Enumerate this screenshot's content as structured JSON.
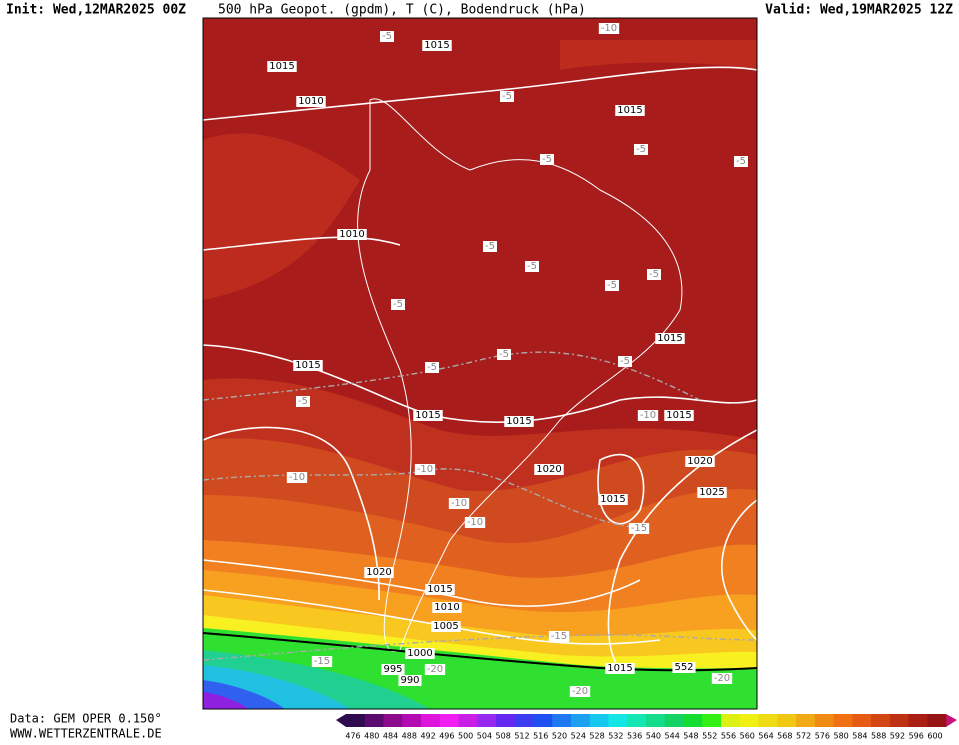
{
  "header": {
    "init": "Init: Wed,12MAR2025 00Z",
    "title": "500 hPa Geopot. (gpdm), T (C), Bodendruck (hPa)",
    "valid": "Valid: Wed,19MAR2025 12Z"
  },
  "map": {
    "pressure_labels": [
      "1015",
      "1015",
      "1010",
      "1015",
      "1010",
      "1015",
      "1015",
      "1015",
      "1015",
      "1015",
      "1020",
      "1020",
      "1015",
      "1025",
      "1020",
      "1015",
      "1010",
      "1005",
      "1000",
      "995",
      "990",
      "1015",
      "552"
    ],
    "temperature_labels": [
      "-5",
      "-10",
      "-5",
      "-5",
      "-5",
      "-5",
      "-5",
      "-5",
      "-5",
      "-5",
      "-5",
      "-5",
      "-5",
      "-5",
      "-5",
      "-10",
      "-10",
      "-10",
      "-10",
      "-10",
      "-15",
      "-15",
      "-15",
      "-20",
      "-20",
      "-20"
    ]
  },
  "colorbar": {
    "values": [
      476,
      480,
      484,
      488,
      492,
      496,
      500,
      504,
      508,
      512,
      516,
      520,
      524,
      528,
      532,
      536,
      540,
      544,
      548,
      552,
      556,
      560,
      564,
      568,
      572,
      576,
      580,
      584,
      588,
      592,
      596,
      600
    ],
    "colors": [
      "#2d0b4e",
      "#5a0a6e",
      "#8c0a8c",
      "#b40ab4",
      "#dc14dc",
      "#f01ef0",
      "#c81ee6",
      "#9628f0",
      "#6428f0",
      "#3c3cf0",
      "#1e50f0",
      "#1e78f0",
      "#1ea0f0",
      "#14c8f0",
      "#14e6e6",
      "#14e6b4",
      "#14dc8c",
      "#14d264",
      "#14dc32",
      "#32f014",
      "#dcf014",
      "#f0f014",
      "#f0dc14",
      "#f0c814",
      "#f0aa14",
      "#f08c14",
      "#f07014",
      "#e65a14",
      "#d24614",
      "#be3214",
      "#aa1e14",
      "#961414"
    ]
  },
  "footer": {
    "source": "Data: GEM OPER 0.150°",
    "site": "WWW.WETTERZENTRALE.DE"
  }
}
